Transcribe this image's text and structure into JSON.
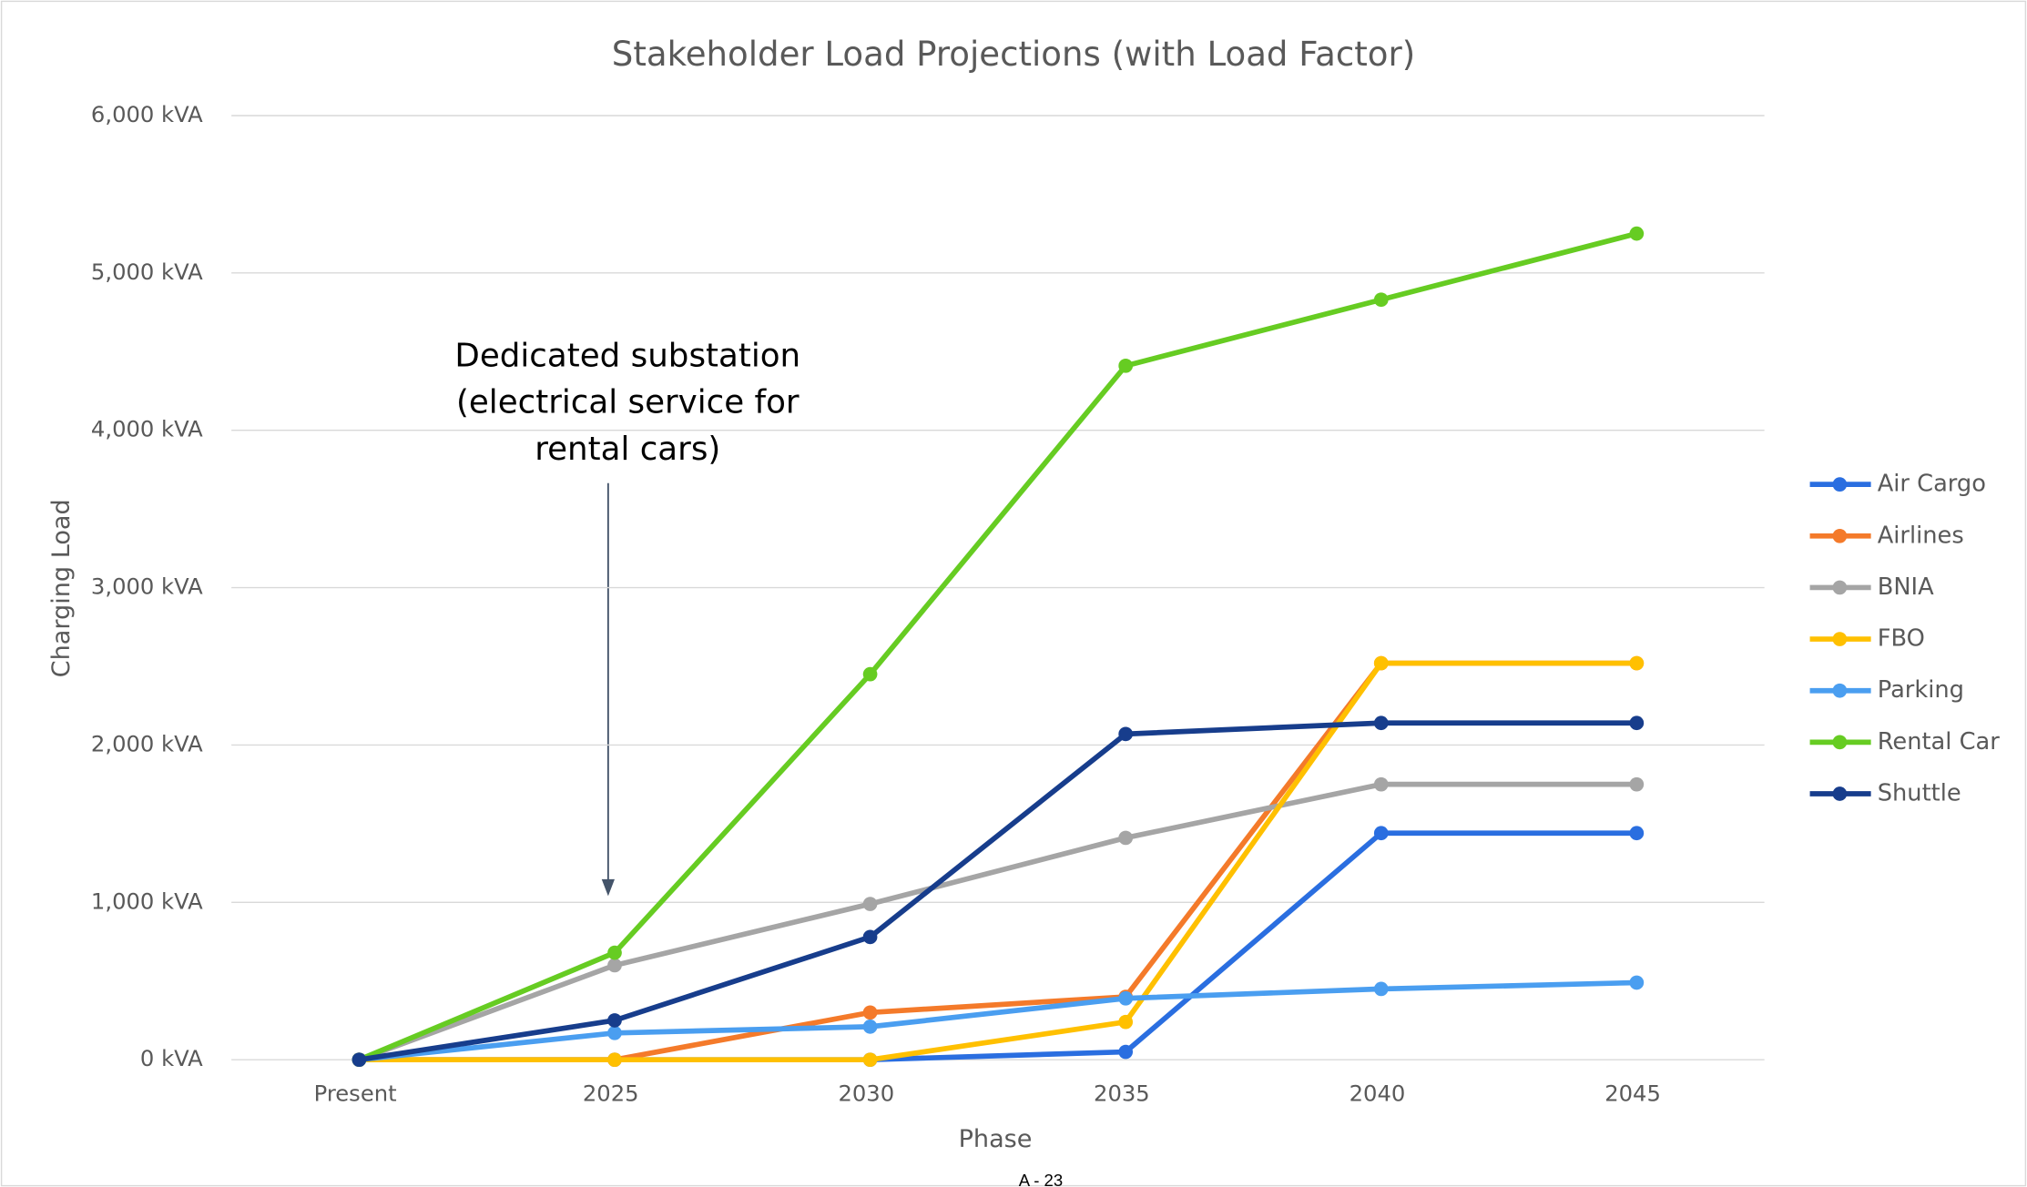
{
  "chart_data": {
    "type": "line",
    "title": "Stakeholder Load Projections (with Load Factor)",
    "xlabel": "Phase",
    "ylabel": "Charging Load",
    "categories": [
      "Present",
      "2025",
      "2030",
      "2035",
      "2040",
      "2045"
    ],
    "series": [
      {
        "name": "Air Cargo",
        "color": "#2a6ee0",
        "values": [
          0,
          0,
          0,
          50,
          1440,
          1440
        ]
      },
      {
        "name": "Airlines",
        "color": "#f47a2a",
        "values": [
          0,
          0,
          300,
          400,
          2520,
          2520
        ]
      },
      {
        "name": "BNIA",
        "color": "#a5a5a5",
        "values": [
          0,
          600,
          990,
          1410,
          1750,
          1750
        ]
      },
      {
        "name": "FBO",
        "color": "#ffc000",
        "values": [
          0,
          0,
          0,
          240,
          2520,
          2520
        ]
      },
      {
        "name": "Parking",
        "color": "#4a9ef0",
        "values": [
          0,
          170,
          210,
          390,
          450,
          490
        ]
      },
      {
        "name": "Rental Car",
        "color": "#66cc22",
        "values": [
          0,
          680,
          2450,
          4410,
          4830,
          5250
        ]
      },
      {
        "name": "Shuttle",
        "color": "#173d8c",
        "values": [
          0,
          250,
          780,
          2070,
          2140,
          2140
        ]
      }
    ],
    "ylim": [
      0,
      6000
    ],
    "yticks": [
      {
        "value": 0,
        "label": "0 kVA"
      },
      {
        "value": 1000,
        "label": "1,000 kVA"
      },
      {
        "value": 2000,
        "label": "2,000 kVA"
      },
      {
        "value": 3000,
        "label": "3,000 kVA"
      },
      {
        "value": 4000,
        "label": "4,000 kVA"
      },
      {
        "value": 5000,
        "label": "5,000 kVA"
      },
      {
        "value": 6000,
        "label": "6,000 kVA"
      }
    ],
    "grid": true,
    "legend": "right",
    "annotation": [
      "Dedicated substation",
      "(electrical service for",
      "rental cars)"
    ],
    "footer": "A - 23"
  }
}
